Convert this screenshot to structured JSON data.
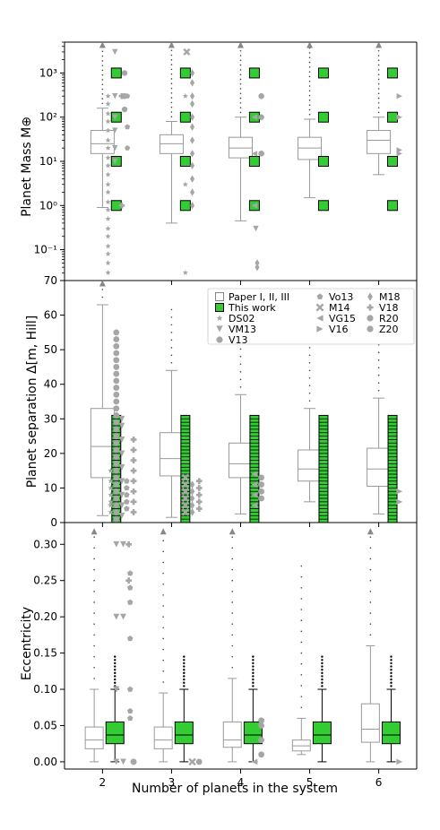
{
  "colors": {
    "paper_box": "#aaaaaa",
    "this_work_fill": "#33cc33",
    "this_work_edge": "#000000",
    "literature": "#a6a6a6",
    "axis": "#000000"
  },
  "chart_data": [
    {
      "type": "box",
      "panel": "top",
      "ylabel": "Planet Mass M⊕",
      "yscale": "log",
      "ylim": [
        0.02,
        5000
      ],
      "yticks": [
        0.1,
        1,
        10,
        100,
        1000
      ],
      "ytick_labels": [
        "10⁻¹",
        "10⁰",
        "10¹",
        "10²",
        "10³"
      ],
      "categories": [
        2,
        3,
        4,
        5,
        6
      ],
      "paper_boxes": [
        {
          "x": 2,
          "whislo": 0.9,
          "q1": 15,
          "med": 25,
          "q3": 50,
          "whishi": 160
        },
        {
          "x": 3,
          "whislo": 0.4,
          "q1": 15,
          "med": 25,
          "q3": 40,
          "whishi": 80
        },
        {
          "x": 4,
          "whislo": 0.45,
          "q1": 12,
          "med": 20,
          "q3": 35,
          "whishi": 100
        },
        {
          "x": 5,
          "whislo": 1.5,
          "q1": 11,
          "med": 20,
          "q3": 35,
          "whishi": 90
        },
        {
          "x": 6,
          "whislo": 5,
          "q1": 15,
          "med": 30,
          "q3": 50,
          "whishi": 100
        }
      ],
      "this_work_values": [
        1,
        10,
        100,
        1000
      ],
      "literature_points": [
        {
          "x": 2.08,
          "marker": "star",
          "values": [
            0.03,
            0.05,
            0.08,
            0.12,
            0.2,
            0.3,
            0.5,
            0.8,
            1.2,
            2,
            3,
            5,
            8,
            12,
            20,
            30,
            50,
            80,
            120,
            200,
            300
          ]
        },
        {
          "x": 2.18,
          "marker": "triangle_down",
          "values": [
            3000,
            300,
            100,
            50,
            20,
            10
          ]
        },
        {
          "x": 2.28,
          "marker": "plus",
          "values": [
            1,
            300,
            300
          ]
        },
        {
          "x": 2.32,
          "marker": "circle",
          "values": [
            300,
            1000,
            300,
            150
          ]
        },
        {
          "x": 2.36,
          "marker": "pentagon",
          "values": [
            300,
            60,
            20
          ]
        },
        {
          "x": 3.3,
          "marker": "diamond",
          "values": [
            1,
            2,
            4,
            8,
            15,
            30,
            60,
            100,
            200,
            300,
            600,
            1000
          ]
        },
        {
          "x": 3.2,
          "marker": "star",
          "values": [
            0.03,
            3,
            300
          ]
        },
        {
          "x": 3.22,
          "marker": "x",
          "values": [
            3000
          ]
        },
        {
          "x": 4.3,
          "marker": "circle",
          "values": [
            300,
            300,
            100,
            15,
            15,
            15
          ]
        },
        {
          "x": 4.2,
          "marker": "triangle_left",
          "values": [
            100,
            15,
            1
          ]
        },
        {
          "x": 4.22,
          "marker": "triangle_down",
          "values": [
            0.3
          ]
        },
        {
          "x": 4.24,
          "marker": "diamond",
          "values": [
            0.05,
            0.04
          ]
        },
        {
          "x": 6.3,
          "marker": "triangle_right",
          "values": [
            300,
            100,
            15,
            18
          ]
        }
      ]
    },
    {
      "type": "box",
      "panel": "middle",
      "ylabel": "Planet separation Δ[m, Hill]",
      "yscale": "linear",
      "ylim": [
        0,
        70
      ],
      "yticks": [
        0,
        10,
        20,
        30,
        40,
        50,
        60,
        70
      ],
      "categories": [
        2,
        3,
        4,
        5,
        6
      ],
      "paper_boxes": [
        {
          "x": 2,
          "whislo": 2,
          "q1": 13,
          "med": 22,
          "q3": 33,
          "whishi": 63
        },
        {
          "x": 3,
          "whislo": 1.5,
          "q1": 13.5,
          "med": 18.5,
          "q3": 26,
          "whishi": 44
        },
        {
          "x": 4,
          "whislo": 2.5,
          "q1": 13,
          "med": 17,
          "q3": 23,
          "whishi": 37
        },
        {
          "x": 5,
          "whislo": 6,
          "q1": 12,
          "med": 15.5,
          "q3": 21,
          "whishi": 33
        },
        {
          "x": 6,
          "whislo": 2.5,
          "q1": 10.5,
          "med": 15.5,
          "q3": 21.5,
          "whishi": 36
        }
      ],
      "this_work_range": [
        0,
        31
      ],
      "literature_points": [
        {
          "x": 2.2,
          "marker": "circle",
          "values": [
            1,
            3,
            5,
            7,
            9,
            11,
            13,
            15,
            17,
            19,
            21,
            23,
            25,
            27,
            29,
            31,
            33,
            35,
            37,
            39,
            41,
            43,
            45,
            47,
            49,
            51,
            53,
            55
          ]
        },
        {
          "x": 2.12,
          "marker": "star",
          "values": [
            3,
            5,
            6,
            8,
            10,
            12,
            15
          ]
        },
        {
          "x": 2.28,
          "marker": "triangle_down",
          "values": [
            2,
            5,
            8,
            12,
            16,
            20,
            24,
            28,
            30
          ]
        },
        {
          "x": 2.35,
          "marker": "pentagon",
          "values": [
            4,
            6,
            8,
            10,
            12
          ]
        },
        {
          "x": 2.45,
          "marker": "plus",
          "values": [
            3,
            6,
            9,
            12,
            15,
            18,
            21,
            24
          ]
        },
        {
          "x": 3.2,
          "marker": "x",
          "values": [
            3,
            5,
            7,
            9,
            11,
            13
          ]
        },
        {
          "x": 3.3,
          "marker": "diamond",
          "values": [
            3,
            5,
            7,
            9,
            11
          ]
        },
        {
          "x": 3.4,
          "marker": "plus",
          "values": [
            4,
            6,
            8,
            10,
            12
          ]
        },
        {
          "x": 4.2,
          "marker": "triangle_left",
          "values": [
            5,
            8,
            11,
            14
          ]
        },
        {
          "x": 4.3,
          "marker": "circle",
          "values": [
            7,
            9,
            11,
            13
          ]
        },
        {
          "x": 6.3,
          "marker": "triangle_right",
          "values": [
            6,
            9
          ]
        }
      ],
      "legend": {
        "location": "top-right",
        "entries": [
          {
            "label": "Paper I, II, III",
            "marker": "square_open"
          },
          {
            "label": "This work",
            "marker": "square_green"
          },
          {
            "label": "DS02",
            "marker": "star"
          },
          {
            "label": "VM13",
            "marker": "triangle_down"
          },
          {
            "label": "V13",
            "marker": "circle"
          },
          {
            "label": "Vo13",
            "marker": "pentagon"
          },
          {
            "label": "M14",
            "marker": "x"
          },
          {
            "label": "VG15",
            "marker": "triangle_left"
          },
          {
            "label": "V16",
            "marker": "triangle_right"
          },
          {
            "label": "M18",
            "marker": "diamond"
          },
          {
            "label": "V18",
            "marker": "plus"
          },
          {
            "label": "R20",
            "marker": "octagon"
          },
          {
            "label": "Z20",
            "marker": "circle"
          }
        ]
      }
    },
    {
      "type": "box",
      "panel": "bottom",
      "ylabel": "Eccentricity",
      "xlabel": "Number of planets in the system",
      "yscale": "linear",
      "ylim": [
        -0.01,
        0.33
      ],
      "yticks": [
        0,
        0.05,
        0.1,
        0.15,
        0.2,
        0.25,
        0.3
      ],
      "ytick_labels": [
        "0.00",
        "0.05",
        "0.10",
        "0.15",
        "0.20",
        "0.25",
        "0.30"
      ],
      "categories": [
        2,
        3,
        4,
        5,
        6
      ],
      "paper_boxes": [
        {
          "x": 2,
          "whislo": 0.0,
          "q1": 0.018,
          "med": 0.03,
          "q3": 0.048,
          "whishi": 0.1
        },
        {
          "x": 3,
          "whislo": 0.0,
          "q1": 0.018,
          "med": 0.03,
          "q3": 0.048,
          "whishi": 0.095
        },
        {
          "x": 4,
          "whislo": 0.0,
          "q1": 0.02,
          "med": 0.03,
          "q3": 0.055,
          "whishi": 0.115
        },
        {
          "x": 5,
          "whislo": 0.01,
          "q1": 0.015,
          "med": 0.022,
          "q3": 0.03,
          "whishi": 0.06
        },
        {
          "x": 6,
          "whislo": 0.0,
          "q1": 0.027,
          "med": 0.045,
          "q3": 0.08,
          "whishi": 0.16
        }
      ],
      "this_work_boxes": [
        {
          "x": 2,
          "whislo": 0.0,
          "q1": 0.025,
          "med": 0.037,
          "q3": 0.055,
          "whishi": 0.1
        },
        {
          "x": 3,
          "whislo": 0.0,
          "q1": 0.025,
          "med": 0.037,
          "q3": 0.055,
          "whishi": 0.1
        },
        {
          "x": 4,
          "whislo": 0.0,
          "q1": 0.025,
          "med": 0.037,
          "q3": 0.055,
          "whishi": 0.1
        },
        {
          "x": 5,
          "whislo": 0.0,
          "q1": 0.025,
          "med": 0.037,
          "q3": 0.055,
          "whishi": 0.1
        },
        {
          "x": 6,
          "whislo": 0.0,
          "q1": 0.025,
          "med": 0.037,
          "q3": 0.055,
          "whishi": 0.1
        }
      ],
      "literature_points": [
        {
          "x": 2.2,
          "marker": "triangle_down",
          "values": [
            0.3,
            0.2,
            0.1,
            0.1,
            0.1,
            0.1,
            0.0
          ]
        },
        {
          "x": 2.3,
          "marker": "triangle_down",
          "values": [
            0.3,
            0.2,
            0.0
          ]
        },
        {
          "x": 2.38,
          "marker": "plus",
          "values": [
            0.3,
            0.25
          ]
        },
        {
          "x": 2.4,
          "marker": "pentagon",
          "values": [
            0.26,
            0.24,
            0.22,
            0.17,
            0.1,
            0.07,
            0.06
          ]
        },
        {
          "x": 2.45,
          "marker": "circle",
          "values": [
            0.0,
            0.0
          ]
        },
        {
          "x": 3.3,
          "marker": "x",
          "values": [
            0.0
          ]
        },
        {
          "x": 3.4,
          "marker": "circle",
          "values": [
            0.0
          ]
        },
        {
          "x": 4.2,
          "marker": "triangle_left",
          "values": [
            0.0
          ]
        },
        {
          "x": 4.3,
          "marker": "circle",
          "values": [
            0.057,
            0.05,
            0.03,
            0.01
          ]
        },
        {
          "x": 6.3,
          "marker": "triangle_right",
          "values": [
            0.0
          ]
        }
      ]
    }
  ],
  "xticks": [
    "2",
    "3",
    "4",
    "5",
    "6"
  ],
  "xlabel": "Number of planets in the system"
}
